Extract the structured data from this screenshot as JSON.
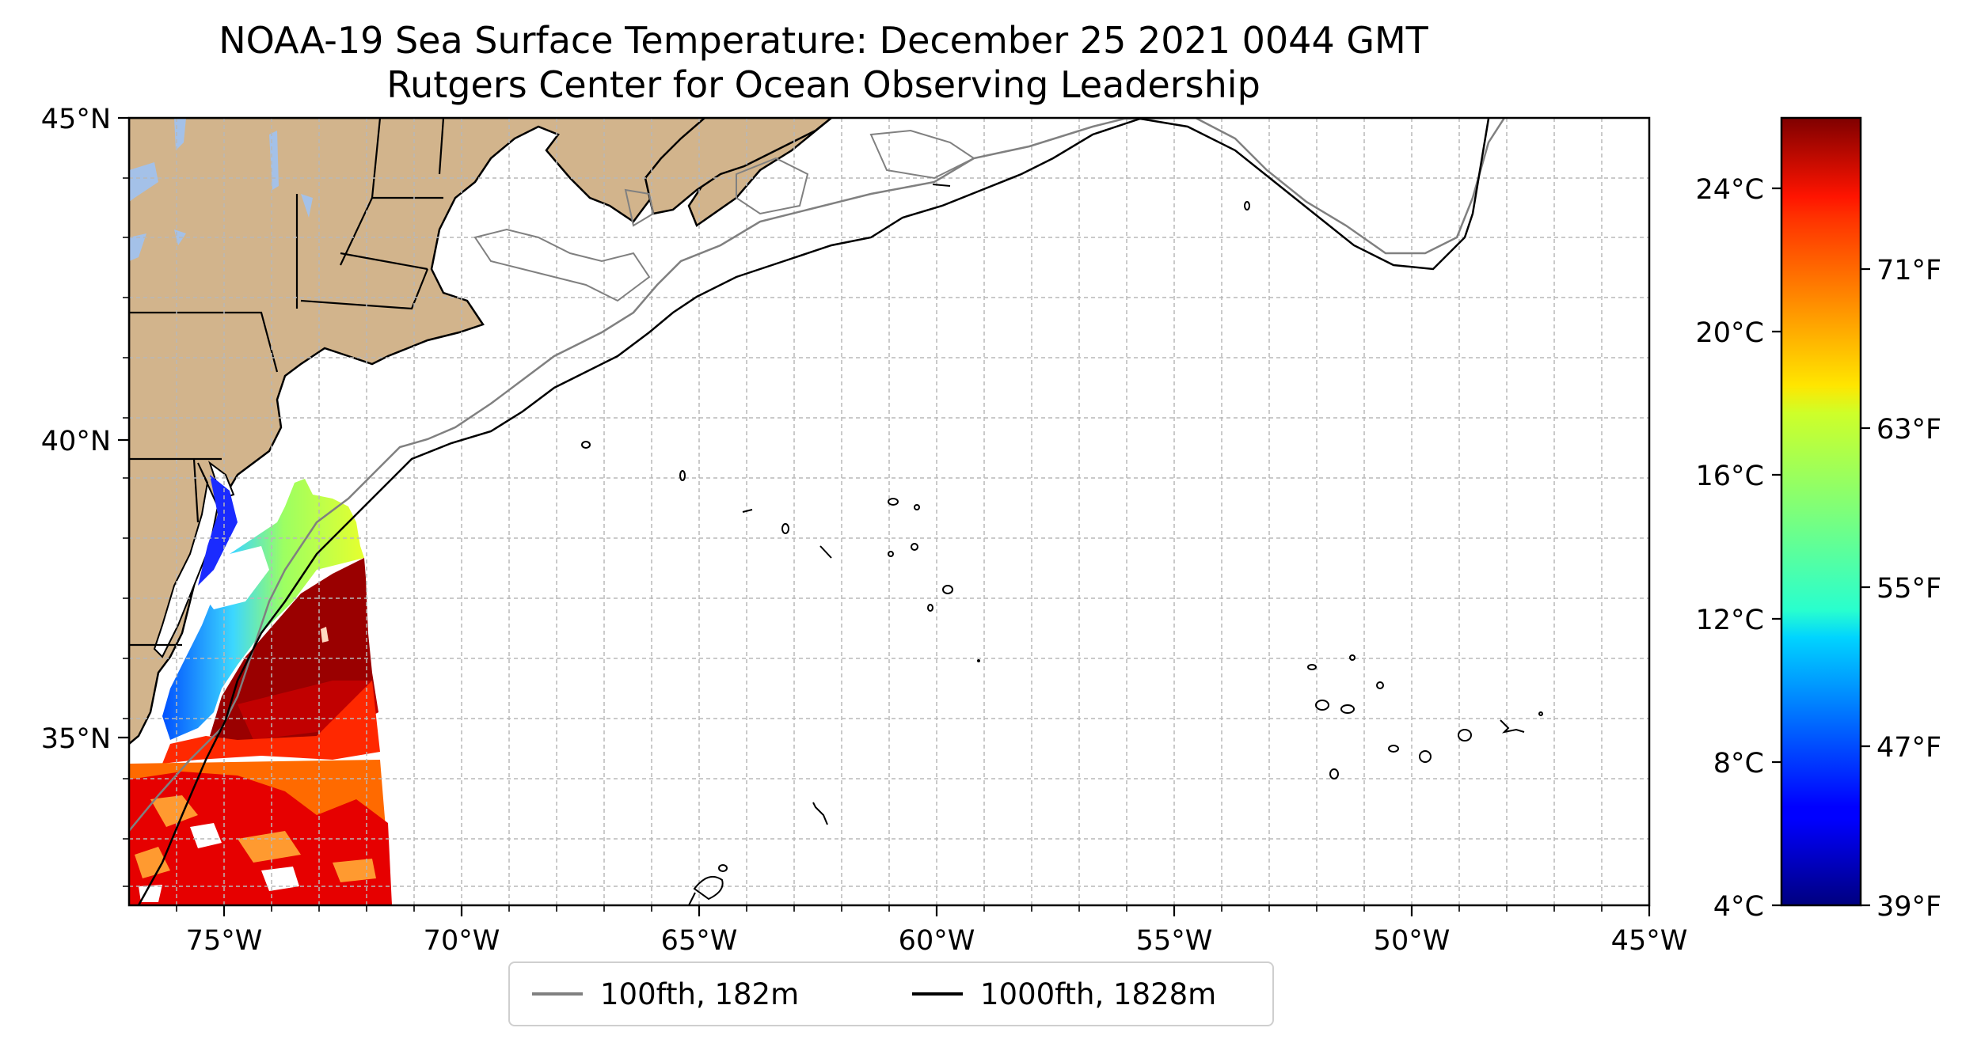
{
  "title": {
    "line1": "NOAA-19 Sea Surface Temperature: December 25 2021 0044 GMT",
    "line2": "Rutgers Center for Ocean Observing Leadership"
  },
  "map": {
    "lon_range": [
      -77,
      -45
    ],
    "lat_range": [
      32.2,
      45
    ],
    "gridlines": true,
    "lat_ticks": [
      "45°N",
      "40°N",
      "35°N"
    ],
    "lon_ticks": [
      "75°W",
      "70°W",
      "65°W",
      "60°W",
      "55°W",
      "50°W",
      "45°W"
    ],
    "land_color": "#d2b48c",
    "lake_color": "#a4c1e8"
  },
  "colorbar": {
    "colormap": "jet",
    "celsius_ticks": [
      "4°C",
      "8°C",
      "12°C",
      "16°C",
      "20°C",
      "24°C"
    ],
    "fahrenheit_ticks": [
      "39°F",
      "47°F",
      "55°F",
      "63°F",
      "71°F"
    ],
    "range_c": [
      4,
      26
    ]
  },
  "legend": {
    "items": [
      {
        "label": "100fth, 182m",
        "color": "#808080"
      },
      {
        "label": "1000fth, 1828m",
        "color": "#000000"
      }
    ]
  }
}
